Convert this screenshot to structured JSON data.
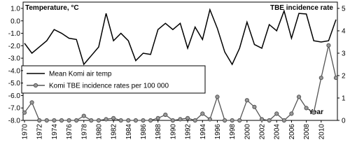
{
  "chart_data": {
    "type": "line",
    "y_label": "Temperature, °C",
    "y2_label": "TBE incidence rate",
    "x_label": "Year",
    "x": [
      1970,
      1971,
      1972,
      1973,
      1974,
      1975,
      1976,
      1977,
      1978,
      1979,
      1980,
      1981,
      1982,
      1983,
      1984,
      1985,
      1986,
      1987,
      1988,
      1989,
      1990,
      1991,
      1992,
      1993,
      1994,
      1995,
      1996,
      1997,
      1998,
      1999,
      2000,
      2001,
      2002,
      2003,
      2004,
      2005,
      2006,
      2007,
      2008,
      2009,
      2010,
      2011,
      2012
    ],
    "series": [
      {
        "name": "Mean Komi air temp",
        "color": "#000000",
        "marker": false,
        "values": [
          -1.8,
          -2.6,
          -2.1,
          -1.6,
          -0.7,
          -1.0,
          -1.4,
          -1.5,
          -3.5,
          -2.8,
          -2.1,
          0.6,
          -1.6,
          -1.0,
          -1.6,
          -3.2,
          -2.6,
          -2.7,
          -0.7,
          -0.2,
          -0.7,
          -0.2,
          -2.2,
          -0.5,
          -1.5,
          0.9,
          -0.6,
          -2.5,
          -3.5,
          -2.2,
          -0.1,
          -1.9,
          -2.2,
          -0.3,
          -0.8,
          0.8,
          -1.4,
          0.6,
          0.55,
          -1.6,
          -1.7,
          -1.6,
          0.1
        ]
      },
      {
        "name": "Komi TBE incidence rates per 100 000",
        "color": "#555555",
        "marker": true,
        "axis": "y2",
        "values": [
          0.35,
          0.8,
          0,
          0,
          0,
          0,
          0,
          0,
          0.2,
          0,
          0,
          0.05,
          0.1,
          0,
          0,
          0,
          0,
          0,
          0.1,
          0.25,
          0,
          0.05,
          0.1,
          0,
          0.3,
          0.05,
          1.05,
          0,
          0,
          0,
          0.9,
          0.6,
          0.05,
          0,
          0.3,
          0,
          0.3,
          1.05,
          0.55,
          0.35,
          1.9,
          3.35,
          1.9
        ]
      }
    ],
    "xlim": [
      1970,
      2012
    ],
    "xticks": [
      1970,
      1972,
      1974,
      1976,
      1978,
      1980,
      1982,
      1984,
      1986,
      1988,
      1990,
      1992,
      1994,
      1996,
      1998,
      2000,
      2002,
      2004,
      2006,
      2008,
      2010
    ],
    "ylim": [
      -8,
      1
    ],
    "yticks": [
      {
        "value": -8,
        "label": "-8.0"
      },
      {
        "value": -7,
        "label": "-7.0"
      },
      {
        "value": -6,
        "label": "-6.0"
      },
      {
        "value": -5,
        "label": "-5.0"
      },
      {
        "value": -4,
        "label": "-4.0"
      },
      {
        "value": -3,
        "label": "-3.0"
      },
      {
        "value": -2,
        "label": "-2.0"
      },
      {
        "value": -1,
        "label": "-1.0"
      },
      {
        "value": 0,
        "label": "0.0"
      },
      {
        "value": 1,
        "label": "1.0"
      }
    ],
    "y2lim": [
      0,
      5
    ],
    "y2ticks": [
      0,
      1,
      2,
      3,
      4,
      5
    ]
  }
}
